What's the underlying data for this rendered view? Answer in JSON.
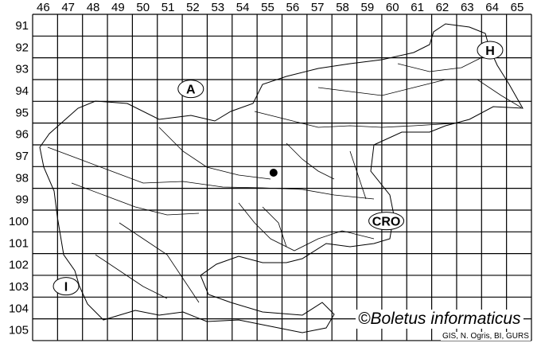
{
  "map": {
    "columns": [
      "46",
      "47",
      "48",
      "49",
      "50",
      "51",
      "52",
      "53",
      "54",
      "55",
      "56",
      "57",
      "58",
      "59",
      "60",
      "61",
      "62",
      "63",
      "64",
      "65"
    ],
    "rows": [
      "91",
      "92",
      "93",
      "94",
      "95",
      "96",
      "97",
      "98",
      "99",
      "100",
      "101",
      "102",
      "103",
      "104",
      "105"
    ],
    "neighbour_labels": [
      {
        "text": "A",
        "col": 52,
        "row": 94
      },
      {
        "text": "H",
        "col": 64,
        "row": 92
      },
      {
        "text": "CRO",
        "col": 60,
        "row": 100
      },
      {
        "text": "I",
        "col": 47,
        "row": 103
      }
    ],
    "records": [
      {
        "col": 55,
        "row": 98
      }
    ],
    "line_color": "#000000",
    "record_color": "#000000"
  },
  "watermark": "©Boletus informaticus",
  "credit": "GIS, N. Ogris, BI, GURS"
}
